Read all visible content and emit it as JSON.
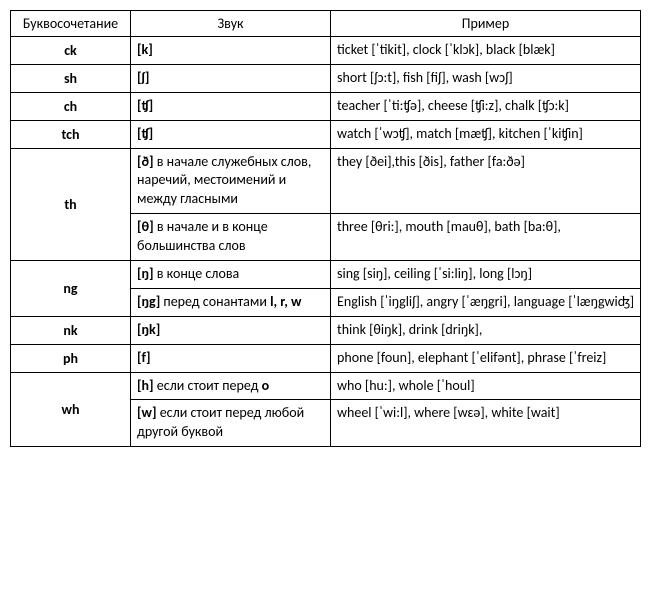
{
  "headers": {
    "c1": "Буквосочетание",
    "c2": "Звук",
    "c3": "Пример"
  },
  "rows": {
    "ck": {
      "letter": "ck",
      "sound": "[k]",
      "example": "ticket [ˈtikit], clock [ˈklɔk], black [blæk]"
    },
    "sh": {
      "letter": "sh",
      "sound": "[ʃ]",
      "example": "short [ʃɔ:t], fish [fiʃ], wash [wɔʃ]"
    },
    "ch": {
      "letter": "ch",
      "sound": "[ʧ]",
      "example": "teacher [ˈti:ʧə], cheese [ʧi:z], chalk [ʧɔ:k]"
    },
    "tch": {
      "letter": "tch",
      "sound": "[ʧ]",
      "example": "watch [ˈwɔʧ], match [mæʧ], kitchen [ˈkiʧin]"
    },
    "th": {
      "letter": "th",
      "s1": "[ð]",
      "s1txt": " в начале служебных слов, наречий, местоимений и между гласными",
      "e1": "they [ðei],this [ðis], father [fa:ðə]",
      "s2": "[θ]",
      "s2txt": " в начале и в конце большинства слов",
      "e2": "three [θri:], mouth [mauθ], bath [ba:θ],"
    },
    "ng": {
      "letter": "ng",
      "s1": "[ŋ]",
      "s1txt": " в конце слова",
      "e1": "sing [siŋ], ceiling [ˈsi:liŋ], long [lɔŋ]",
      "s2": "[ŋg]",
      "s2txt_a": " перед сонантами ",
      "s2txt_b": "l, r, w",
      "e2": "English [ˈiŋgliʃ], angry [ˈæŋgri], language [ˈlæŋgwiʤ]"
    },
    "nk": {
      "letter": "nk",
      "sound": "[ŋk]",
      "example": "think [θiŋk], drink [driŋk],"
    },
    "ph": {
      "letter": "ph",
      "sound": "[f]",
      "example": "phone [foun], elephant [ˈelifənt], phrase [ˈfreiz]"
    },
    "wh": {
      "letter": "wh",
      "s1": "[h]",
      "s1txt_a": " если стоит перед ",
      "s1txt_b": "o",
      "e1": "who [hu:], whole [ˈhoul]",
      "s2": "[w]",
      "s2txt": " если стоит перед любой другой буквой",
      "e2": "wheel [ˈwi:l], where [wɛə], white [wait]"
    }
  }
}
